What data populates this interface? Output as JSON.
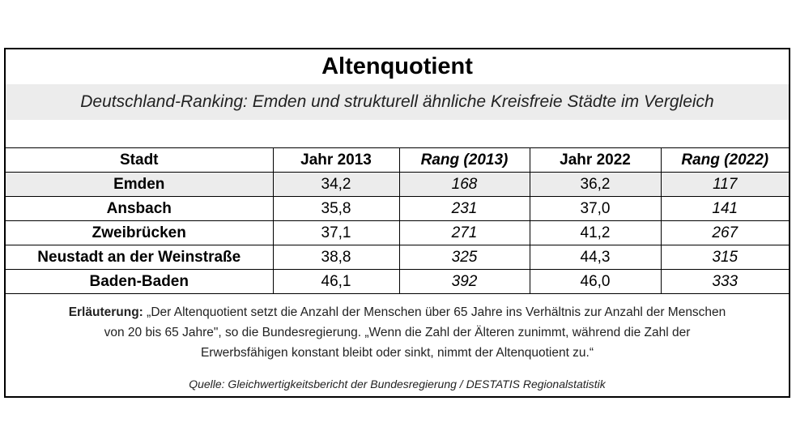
{
  "title": "Altenquotient",
  "subtitle": "Deutschland-Ranking: Emden und strukturell ähnliche Kreisfreie Städte im Vergleich",
  "table": {
    "headers": [
      "Stadt",
      "Jahr 2013",
      "Rang (2013)",
      "Jahr 2022",
      "Rang (2022)"
    ],
    "rows": [
      [
        "Emden",
        "34,2",
        "168",
        "36,2",
        "117"
      ],
      [
        "Ansbach",
        "35,8",
        "231",
        "37,0",
        "141"
      ],
      [
        "Zweibrücken",
        "37,1",
        "271",
        "41,2",
        "267"
      ],
      [
        "Neustadt an der Weinstraße",
        "38,8",
        "325",
        "44,3",
        "315"
      ],
      [
        "Baden-Baden",
        "46,1",
        "392",
        "46,0",
        "333"
      ]
    ]
  },
  "note": {
    "label": "Erläuterung:",
    "line1": "„Der Altenquotient setzt die Anzahl der Menschen über 65 Jahre ins Verhältnis zur Anzahl der Menschen",
    "line2": "von 20 bis 65 Jahre\", so die Bundesregierung. „Wenn die Zahl der Älteren zunimmt, während die Zahl der",
    "line3": "Erwerbsfähigen konstant bleibt oder sinkt, nimmt der Altenquotient zu.“"
  },
  "source": "Quelle: Gleichwertigkeitsbericht der Bundesregierung / DESTATIS Regionalstatistik"
}
